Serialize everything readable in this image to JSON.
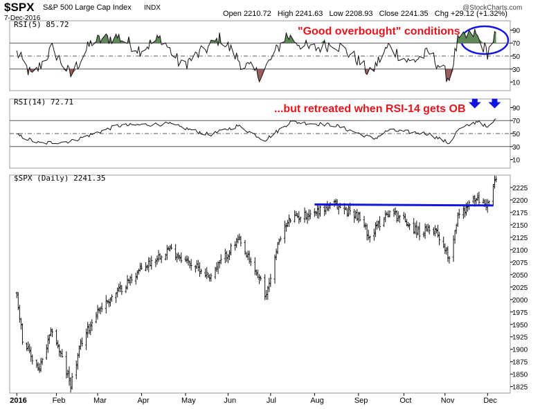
{
  "header": {
    "symbol": "$SPX",
    "name": "S&P 500 Large Cap Index",
    "exchange": "INDX",
    "date": "7-Dec-2016",
    "quote_line": "Open 2210.72   High 2241.63   Low 2208.93   Close 2241.35   Chg +29.12 (+1.32%)",
    "logo": "@StockCharts.com"
  },
  "chart_data": [
    {
      "type": "area",
      "panel": "rsi5",
      "title": "RSI(5) 85.72",
      "ylim": [
        0,
        100
      ],
      "y_ticks": [
        10,
        30,
        50,
        70,
        90
      ],
      "reference_lines": [
        30,
        50,
        70
      ],
      "fill_above": 70,
      "fill_above_color": "#5e8a58",
      "fill_below": 30,
      "fill_below_color": "#9a5e5e",
      "x": [
        "2016-01-04",
        "2016-01-15",
        "2016-01-29",
        "2016-02-11",
        "2016-02-26",
        "2016-03-15",
        "2016-03-31",
        "2016-04-15",
        "2016-04-29",
        "2016-05-13",
        "2016-05-27",
        "2016-06-10",
        "2016-06-24",
        "2016-07-12",
        "2016-07-29",
        "2016-08-15",
        "2016-08-31",
        "2016-09-09",
        "2016-09-22",
        "2016-10-07",
        "2016-10-21",
        "2016-11-04",
        "2016-11-10",
        "2016-11-22",
        "2016-12-01",
        "2016-12-07"
      ],
      "values": [
        55,
        18,
        62,
        20,
        72,
        80,
        60,
        78,
        35,
        55,
        78,
        40,
        20,
        82,
        60,
        70,
        45,
        22,
        65,
        40,
        55,
        15,
        72,
        85,
        55,
        85.72
      ],
      "annotation": "\"Good overbought\" conditions",
      "annotation_color": "#e8141c"
    },
    {
      "type": "line",
      "panel": "rsi14",
      "title": "RSI(14) 72.71",
      "ylim": [
        0,
        100
      ],
      "y_ticks": [
        10,
        30,
        50,
        70,
        90
      ],
      "reference_lines": [
        30,
        50,
        70
      ],
      "x": [
        "2016-01-04",
        "2016-01-20",
        "2016-02-11",
        "2016-03-15",
        "2016-04-20",
        "2016-05-19",
        "2016-06-08",
        "2016-06-27",
        "2016-07-15",
        "2016-08-15",
        "2016-09-12",
        "2016-09-22",
        "2016-10-20",
        "2016-11-04",
        "2016-11-10",
        "2016-11-25",
        "2016-12-01",
        "2016-12-07"
      ],
      "values": [
        48,
        35,
        38,
        62,
        65,
        48,
        62,
        40,
        68,
        63,
        42,
        55,
        50,
        35,
        55,
        70,
        58,
        72.71
      ],
      "annotation": "...but retreated when RSI-14 gets OB",
      "annotation_color": "#e8141c",
      "markers": [
        "2016-11-22",
        "2016-12-06"
      ],
      "marker_color": "#1414e0"
    },
    {
      "type": "ohlc",
      "panel": "price",
      "title": "$SPX (Daily) 2241.35",
      "ylim": [
        1812,
        2250
      ],
      "y_ticks": [
        1825,
        1850,
        1875,
        1900,
        1925,
        1950,
        1975,
        2000,
        2025,
        2050,
        2075,
        2100,
        2125,
        2150,
        2175,
        2200,
        2225
      ],
      "x_ticks": [
        "2016",
        "Feb",
        "Mar",
        "Apr",
        "May",
        "Jun",
        "Jul",
        "Aug",
        "Sep",
        "Oct",
        "Nov",
        "Dec"
      ],
      "x_tick_dates": [
        "2016-01-04",
        "2016-02-01",
        "2016-03-01",
        "2016-04-01",
        "2016-05-02",
        "2016-06-01",
        "2016-07-01",
        "2016-08-01",
        "2016-09-01",
        "2016-10-03",
        "2016-11-01",
        "2016-12-01"
      ],
      "x_range": [
        "2015-12-30",
        "2016-12-17"
      ],
      "close_anchors": {
        "dates": [
          "2016-01-04",
          "2016-01-08",
          "2016-01-15",
          "2016-01-20",
          "2016-01-29",
          "2016-02-05",
          "2016-02-11",
          "2016-02-19",
          "2016-03-01",
          "2016-03-15",
          "2016-03-31",
          "2016-04-20",
          "2016-05-19",
          "2016-06-08",
          "2016-06-24",
          "2016-06-27",
          "2016-07-08",
          "2016-07-15",
          "2016-07-29",
          "2016-08-15",
          "2016-08-31",
          "2016-09-09",
          "2016-09-22",
          "2016-09-30",
          "2016-10-14",
          "2016-10-25",
          "2016-11-04",
          "2016-11-10",
          "2016-11-22",
          "2016-12-01",
          "2016-12-07"
        ],
        "values": [
          2012,
          1922,
          1880,
          1859,
          1940,
          1880,
          1829,
          1917,
          1978,
          2015,
          2060,
          2102,
          2047,
          2119,
          2037,
          2000,
          2130,
          2162,
          2173,
          2190,
          2170,
          2127,
          2177,
          2168,
          2133,
          2143,
          2085,
          2167,
          2202,
          2191,
          2241.35
        ]
      },
      "trendline": {
        "from": [
          "2016-08-01",
          2191
        ],
        "to": [
          "2016-12-05",
          2189
        ],
        "color": "#1414e0"
      }
    }
  ],
  "colors": {
    "axis": "#000000",
    "grid_ref": "#555555",
    "panel_border": "#9a9a9a",
    "highlight_ellipse": "#1414e0"
  }
}
